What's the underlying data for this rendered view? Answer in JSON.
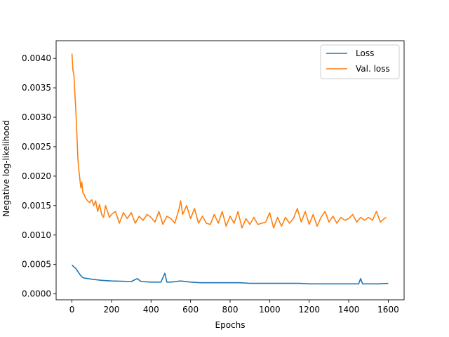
{
  "chart_data": {
    "type": "line",
    "title": "",
    "xlabel": "Epochs",
    "ylabel": "Negative log-likelihood",
    "xlim": [
      -80,
      1680
    ],
    "ylim": [
      -0.0001,
      0.0043
    ],
    "xticks": [
      0,
      200,
      400,
      600,
      800,
      1000,
      1200,
      1400,
      1600
    ],
    "xtick_labels": [
      "0",
      "200",
      "400",
      "600",
      "800",
      "1000",
      "1200",
      "1400",
      "1600"
    ],
    "yticks": [
      0.0,
      0.0005,
      0.001,
      0.0015,
      0.002,
      0.0025,
      0.003,
      0.0035,
      0.004
    ],
    "ytick_labels": [
      "0.0000",
      "0.0005",
      "0.0010",
      "0.0015",
      "0.0020",
      "0.0025",
      "0.0030",
      "0.0035",
      "0.0040"
    ],
    "grid": false,
    "legend": "top-right",
    "series": [
      {
        "name": "Loss",
        "color": "#1f77b4",
        "x": [
          0,
          10,
          20,
          30,
          40,
          50,
          60,
          80,
          100,
          150,
          200,
          250,
          300,
          330,
          350,
          400,
          450,
          470,
          480,
          500,
          550,
          600,
          650,
          700,
          750,
          800,
          850,
          900,
          950,
          1000,
          1050,
          1100,
          1150,
          1200,
          1250,
          1300,
          1350,
          1400,
          1450,
          1460,
          1470,
          1500,
          1550,
          1600
        ],
        "values": [
          0.00049,
          0.00046,
          0.00043,
          0.00038,
          0.00033,
          0.00029,
          0.00027,
          0.00026,
          0.00025,
          0.00023,
          0.00022,
          0.000215,
          0.00021,
          0.00026,
          0.00021,
          0.0002,
          0.0002,
          0.00035,
          0.0002,
          0.0002,
          0.00022,
          0.0002,
          0.00019,
          0.00019,
          0.00019,
          0.00019,
          0.00019,
          0.00018,
          0.00018,
          0.00018,
          0.00018,
          0.00018,
          0.00018,
          0.00017,
          0.00017,
          0.00017,
          0.00017,
          0.00017,
          0.00017,
          0.00026,
          0.00017,
          0.00017,
          0.00017,
          0.00018
        ]
      },
      {
        "name": "Val. loss",
        "color": "#ff7f0e",
        "x": [
          0,
          5,
          10,
          15,
          20,
          25,
          30,
          35,
          40,
          45,
          50,
          55,
          60,
          70,
          80,
          90,
          100,
          110,
          120,
          130,
          140,
          150,
          160,
          170,
          180,
          190,
          200,
          220,
          240,
          260,
          280,
          300,
          320,
          340,
          360,
          380,
          400,
          420,
          440,
          460,
          480,
          500,
          520,
          540,
          550,
          560,
          580,
          600,
          620,
          640,
          660,
          680,
          700,
          720,
          740,
          760,
          780,
          800,
          820,
          840,
          860,
          880,
          900,
          920,
          940,
          960,
          980,
          1000,
          1020,
          1040,
          1060,
          1080,
          1100,
          1120,
          1140,
          1160,
          1180,
          1200,
          1220,
          1240,
          1260,
          1280,
          1300,
          1320,
          1340,
          1360,
          1380,
          1400,
          1420,
          1440,
          1460,
          1480,
          1500,
          1520,
          1540,
          1560,
          1580,
          1590
        ],
        "values": [
          0.00408,
          0.0038,
          0.00372,
          0.0034,
          0.0031,
          0.0027,
          0.0023,
          0.0021,
          0.00195,
          0.0018,
          0.0019,
          0.00172,
          0.0017,
          0.00162,
          0.00158,
          0.00155,
          0.0016,
          0.0015,
          0.00158,
          0.0014,
          0.00152,
          0.00135,
          0.0013,
          0.0015,
          0.0014,
          0.0013,
          0.00135,
          0.0014,
          0.0012,
          0.00138,
          0.00128,
          0.00138,
          0.0012,
          0.00132,
          0.00125,
          0.00135,
          0.0013,
          0.00122,
          0.0014,
          0.00118,
          0.00132,
          0.00128,
          0.0012,
          0.00142,
          0.00158,
          0.00135,
          0.0015,
          0.00128,
          0.00145,
          0.0012,
          0.00132,
          0.0012,
          0.00118,
          0.00135,
          0.0012,
          0.0014,
          0.00115,
          0.00132,
          0.0012,
          0.0014,
          0.00112,
          0.00128,
          0.00118,
          0.0013,
          0.00118,
          0.0012,
          0.00122,
          0.00138,
          0.00112,
          0.0013,
          0.00115,
          0.0013,
          0.0012,
          0.00128,
          0.00145,
          0.00122,
          0.0014,
          0.00118,
          0.00135,
          0.00115,
          0.0013,
          0.0014,
          0.00122,
          0.00132,
          0.0012,
          0.0013,
          0.00125,
          0.00128,
          0.00135,
          0.00122,
          0.0013,
          0.00125,
          0.0013,
          0.00125,
          0.0014,
          0.00122,
          0.00128,
          0.0013
        ]
      }
    ]
  }
}
